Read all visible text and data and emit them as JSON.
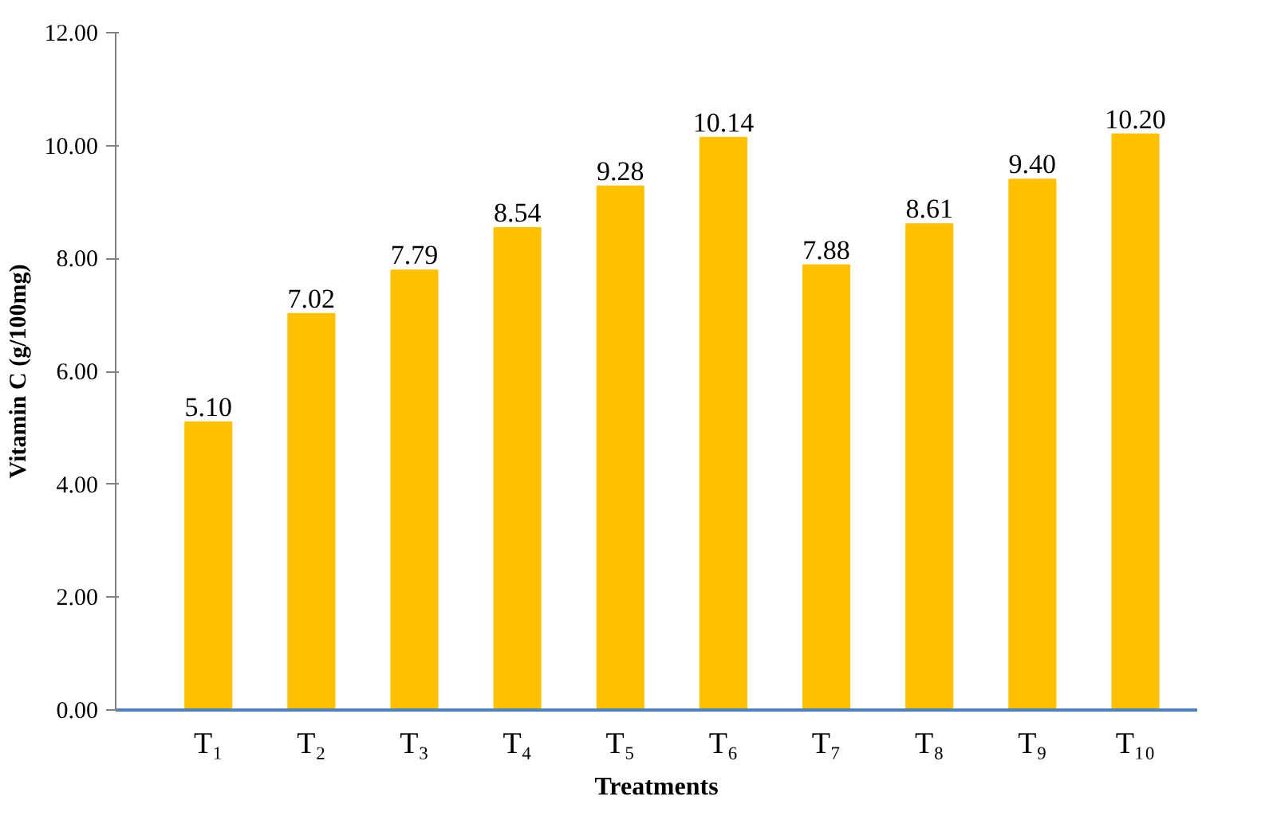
{
  "chart_data": {
    "type": "bar",
    "xlabel": "Treatments",
    "ylabel": "Vitamin C (g/100mg)",
    "categories": [
      "T₁",
      "T₂",
      "T₃",
      "T₄",
      "T₅",
      "T₆",
      "T₇",
      "T₈",
      "T₉",
      "T₁₀"
    ],
    "values": [
      5.1,
      7.02,
      7.79,
      8.54,
      9.28,
      10.14,
      7.88,
      8.61,
      9.4,
      10.2
    ],
    "color": "#ffc000",
    "ylim": [
      0,
      12
    ],
    "yticks": [
      {
        "value": 0,
        "label": "0.00"
      },
      {
        "value": 2,
        "label": "2.00"
      },
      {
        "value": 4,
        "label": "4.00"
      },
      {
        "value": 6,
        "label": "6.00"
      },
      {
        "value": 8,
        "label": "8.00"
      },
      {
        "value": 10,
        "label": "10.00"
      },
      {
        "value": 12,
        "label": "12.00"
      }
    ],
    "value_labels": [
      "5.10",
      "7.02",
      "7.79",
      "8.54",
      "9.28",
      "10.14",
      "7.88",
      "8.61",
      "9.40",
      "10.20"
    ],
    "data_labels": false
  }
}
